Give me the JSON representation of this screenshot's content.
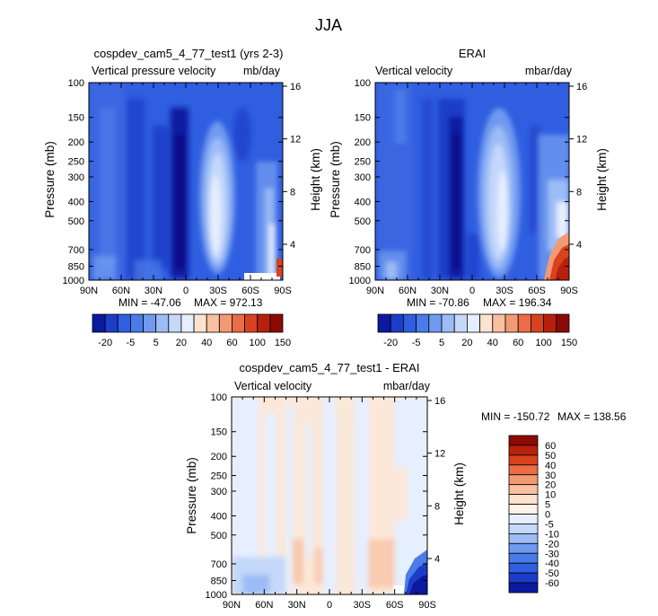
{
  "figure": {
    "title": "JJA"
  },
  "chart_data": [
    {
      "type": "heatmap",
      "title": "cospdev_cam5_4_77_test1 (yrs 2-3)",
      "subtitle_left": "Vertical pressure velocity",
      "subtitle_right": "mb/day",
      "xlabel": "",
      "ylabel": "Pressure (mb)",
      "y2label": "Height (km)",
      "x_ticks": [
        "90N",
        "60N",
        "30N",
        "0",
        "30S",
        "60S",
        "90S"
      ],
      "y_ticks": [
        "100",
        "150",
        "200",
        "250",
        "300",
        "400",
        "500",
        "700",
        "850",
        "1000"
      ],
      "y_log_scale": true,
      "y2_ticks": [
        "16",
        "12",
        "8",
        "4"
      ],
      "min_text": "MIN = -47.06",
      "max_text": "MAX = 972.13",
      "colorbar_labels": [
        "-20",
        "-5",
        "5",
        "20",
        "40",
        "60",
        "100",
        "150"
      ],
      "colorbar_colors": [
        "#0b1aa0",
        "#1d3cc8",
        "#2f5ee0",
        "#4a7ce8",
        "#6f9af0",
        "#9cbcf6",
        "#c4d8fa",
        "#e6efff",
        "#fde3cf",
        "#f8c0a0",
        "#f29a74",
        "#ea6d48",
        "#d8421f",
        "#b8200e",
        "#8c0a05"
      ]
    },
    {
      "type": "heatmap",
      "title": "ERAI",
      "subtitle_left": "Vertical velocity",
      "subtitle_right": "mbar/day",
      "xlabel": "",
      "ylabel": "Pressure (mb)",
      "y2label": "Height (km)",
      "x_ticks": [
        "90N",
        "60N",
        "30N",
        "0",
        "30S",
        "60S",
        "90S"
      ],
      "y_ticks": [
        "100",
        "150",
        "200",
        "250",
        "300",
        "400",
        "500",
        "700",
        "850",
        "1000"
      ],
      "y_log_scale": true,
      "y2_ticks": [
        "16",
        "12",
        "8",
        "4"
      ],
      "min_text": "MIN = -70.86",
      "max_text": "MAX = 196.34",
      "colorbar_labels": [
        "-20",
        "-5",
        "5",
        "20",
        "40",
        "60",
        "100",
        "150"
      ],
      "colorbar_colors": [
        "#0b1aa0",
        "#1d3cc8",
        "#2f5ee0",
        "#4a7ce8",
        "#6f9af0",
        "#9cbcf6",
        "#c4d8fa",
        "#e6efff",
        "#fde3cf",
        "#f8c0a0",
        "#f29a74",
        "#ea6d48",
        "#d8421f",
        "#b8200e",
        "#8c0a05"
      ]
    },
    {
      "type": "heatmap",
      "title": "cospdev_cam5_4_77_test1 - ERAI",
      "subtitle_left": "Vertical velocity",
      "subtitle_right": "mbar/day",
      "xlabel": "",
      "ylabel": "Pressure (mb)",
      "y2label": "Height (km)",
      "x_ticks": [
        "90N",
        "60N",
        "30N",
        "0",
        "30S",
        "60S",
        "90S"
      ],
      "y_ticks": [
        "100",
        "150",
        "200",
        "250",
        "300",
        "400",
        "500",
        "700",
        "850",
        "1000"
      ],
      "y_log_scale": true,
      "y2_ticks": [
        "16",
        "12",
        "8",
        "4"
      ],
      "min_text": "MIN = -150.72",
      "max_text": "MAX = 138.56",
      "colorbar_labels": [
        "60",
        "50",
        "40",
        "30",
        "20",
        "10",
        "5",
        "0",
        "-5",
        "-10",
        "-20",
        "-30",
        "-40",
        "-50",
        "-60"
      ],
      "colorbar_colors": [
        "#8c0a05",
        "#b8200e",
        "#d8421f",
        "#ea6d48",
        "#f29a74",
        "#f8c0a0",
        "#fde3cf",
        "#fff3e8",
        "#e6efff",
        "#c4d8fa",
        "#9cbcf6",
        "#6f9af0",
        "#4a7ce8",
        "#2f5ee0",
        "#1d3cc8",
        "#0b1aa0"
      ]
    }
  ]
}
